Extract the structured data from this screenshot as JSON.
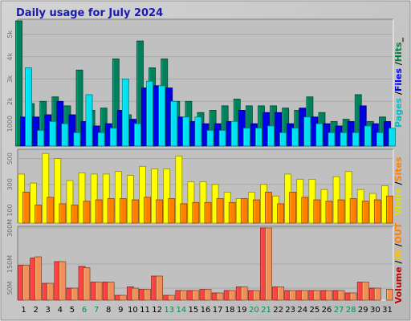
{
  "chart_data": {
    "type": "bar",
    "title": "Daily usage for July 2024",
    "days": [
      "1",
      "2",
      "3",
      "4",
      "5",
      "6",
      "7",
      "8",
      "9",
      "10",
      "11",
      "12",
      "13",
      "14",
      "15",
      "16",
      "17",
      "18",
      "19",
      "20",
      "21",
      "22",
      "23",
      "24",
      "25",
      "26",
      "27",
      "28",
      "29",
      "30",
      "31"
    ],
    "weekend_days": [
      "6",
      "7",
      "13",
      "14",
      "20",
      "21",
      "27",
      "28"
    ],
    "panels": [
      {
        "id": "hits",
        "ylim": [
          0,
          5600
        ],
        "ticks": [
          {
            "value": 1000,
            "label": "1000"
          },
          {
            "value": 2000,
            "label": "2k"
          },
          {
            "value": 3000,
            "label": "3k"
          },
          {
            "value": 4000,
            "label": "4k"
          },
          {
            "value": 5000,
            "label": "5k"
          }
        ],
        "right_label": [
          {
            "text": "Pages",
            "color": "#00c0c0"
          },
          {
            "text": " /",
            "color": "#000000"
          },
          {
            "text": "Files",
            "color": "#0000ff"
          },
          {
            "text": " /",
            "color": "#000000"
          },
          {
            "text": "Hits",
            "color": "#008040"
          },
          {
            "text": "_",
            "color": "#000000"
          }
        ],
        "series": [
          {
            "name": "Hits",
            "color": "#00805c",
            "values": [
              5600,
              1900,
              2000,
              2200,
              1800,
              3400,
              1600,
              1700,
              3900,
              1400,
              4700,
              3500,
              3900,
              2000,
              2000,
              1500,
              1600,
              1800,
              2100,
              1800,
              1800,
              1800,
              1700,
              1600,
              2200,
              1500,
              1100,
              1200,
              2300,
              1100,
              1300
            ]
          },
          {
            "name": "Files",
            "color": "#0000e0",
            "values": [
              1300,
              1300,
              1400,
              2000,
              1400,
              1100,
              900,
              1000,
              1600,
              1200,
              2600,
              2700,
              2600,
              1300,
              1100,
              1000,
              1000,
              1100,
              1600,
              1000,
              1500,
              1500,
              1000,
              1700,
              1300,
              1000,
              900,
              1100,
              1800,
              1000,
              1100
            ]
          },
          {
            "name": "Pages",
            "color": "#00e0f0",
            "values": [
              3500,
              700,
              1100,
              1000,
              600,
              2300,
              600,
              800,
              3000,
              1000,
              2900,
              2700,
              2000,
              1300,
              1300,
              700,
              700,
              1100,
              800,
              800,
              900,
              600,
              800,
              1300,
              1000,
              600,
              600,
              600,
              900,
              600,
              800
            ]
          }
        ]
      },
      {
        "id": "visits",
        "ylim": [
          0,
          560
        ],
        "ticks": [
          {
            "value": 100,
            "label": "100"
          },
          {
            "value": 300,
            "label": "300"
          },
          {
            "value": 500,
            "label": "500"
          }
        ],
        "right_label": [
          {
            "text": "Visits",
            "color": "#e0e000"
          },
          {
            "text": " /",
            "color": "#000000"
          },
          {
            "text": "Sites",
            "color": "#ff8000"
          }
        ],
        "series": [
          {
            "name": "Visits",
            "color": "#ffff00",
            "values": [
              380,
              310,
              540,
              500,
              330,
              390,
              380,
              380,
              400,
              370,
              440,
              420,
              420,
              520,
              320,
              320,
              300,
              240,
              190,
              240,
              300,
              210,
              380,
              340,
              340,
              260,
              360,
              400,
              260,
              230,
              290
            ]
          },
          {
            "name": "Sites",
            "color": "#ff8000",
            "values": [
              240,
              140,
              200,
              150,
              140,
              170,
              180,
              190,
              190,
              180,
              200,
              180,
              190,
              150,
              160,
              160,
              190,
              160,
              190,
              180,
              240,
              150,
              240,
              200,
              180,
              170,
              180,
              190,
              170,
              180,
              210
            ]
          }
        ]
      },
      {
        "id": "volume",
        "ylim": [
          0,
          300
        ],
        "ticks": [
          {
            "value": 50,
            "label": "50M"
          },
          {
            "value": 150,
            "label": "150M"
          },
          {
            "value": 300,
            "label": "300M"
          }
        ],
        "right_label": [
          {
            "text": "Volume",
            "color": "#c00000"
          },
          {
            "text": " /",
            "color": "#000000"
          },
          {
            "text": "IN",
            "color": "#ffc000"
          },
          {
            "text": " /",
            "color": "#000000"
          },
          {
            "text": "OUT",
            "color": "#ff8000"
          }
        ],
        "series": [
          {
            "name": "Volume",
            "color": "#ff4040",
            "values": [
              145,
              175,
              70,
              160,
              50,
              140,
              75,
              75,
              20,
              55,
              45,
              100,
              20,
              40,
              40,
              45,
              30,
              40,
              55,
              40,
              300,
              55,
              40,
              40,
              40,
              40,
              40,
              30,
              75,
              50,
              0
            ]
          },
          {
            "name": "OUT",
            "color": "#f09058",
            "values": [
              145,
              180,
              70,
              160,
              50,
              135,
              75,
              75,
              20,
              50,
              45,
              100,
              20,
              40,
              40,
              45,
              30,
              40,
              55,
              40,
              300,
              55,
              40,
              40,
              40,
              40,
              40,
              30,
              75,
              50,
              45
            ]
          }
        ]
      }
    ]
  }
}
